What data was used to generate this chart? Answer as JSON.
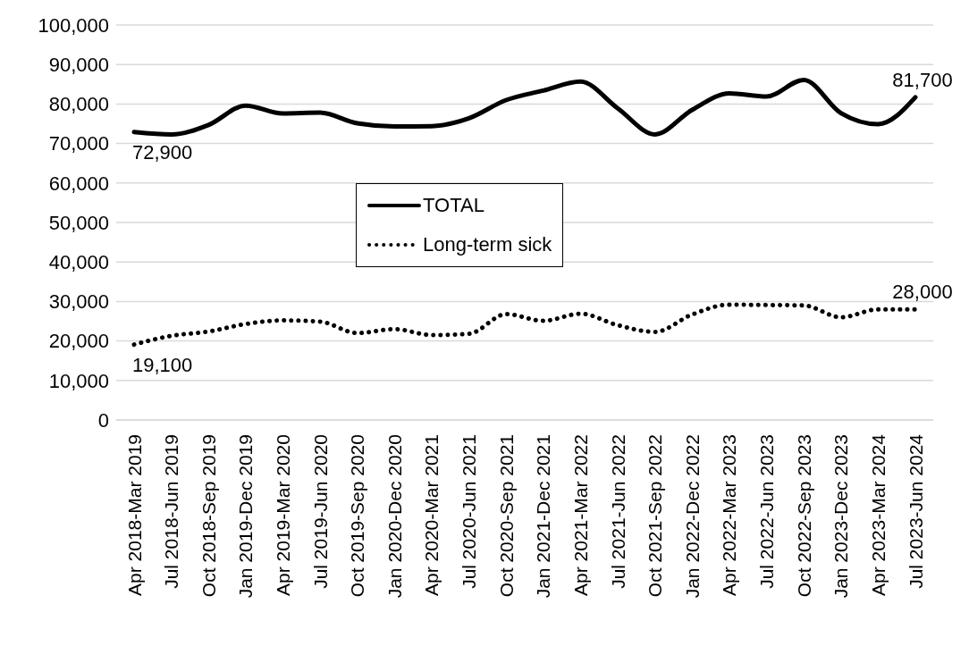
{
  "chart_data": {
    "type": "line",
    "categories": [
      "Apr 2018-Mar 2019",
      "Jul 2018-Jun 2019",
      "Oct 2018-Sep 2019",
      "Jan 2019-Dec 2019",
      "Apr 2019-Mar 2020",
      "Jul 2019-Jun 2020",
      "Oct 2019-Sep 2020",
      "Jan 2020-Dec 2020",
      "Apr 2020-Mar 2021",
      "Jul 2020-Jun 2021",
      "Oct 2020-Sep 2021",
      "Jan 2021-Dec 2021",
      "Apr 2021-Mar 2022",
      "Jul 2021-Jun 2022",
      "Oct 2021-Sep 2022",
      "Jan 2022-Dec 2022",
      "Apr 2022-Mar 2023",
      "Jul 2022-Jun 2023",
      "Oct 2022-Sep 2023",
      "Jan 2023-Dec 2023",
      "Apr 2023-Mar 2024",
      "Jul 2023-Jun 2024"
    ],
    "series": [
      {
        "name": "TOTAL",
        "color": "#000000",
        "line_style": "solid",
        "values": [
          72900,
          72300,
          74700,
          79600,
          77600,
          77800,
          75100,
          74300,
          74400,
          76400,
          81000,
          83400,
          85700,
          78900,
          72300,
          78500,
          82700,
          81900,
          86100,
          77700,
          74900,
          81700
        ],
        "value_labels": [
          "72,900",
          null,
          null,
          null,
          null,
          null,
          null,
          null,
          null,
          null,
          null,
          null,
          null,
          null,
          null,
          null,
          null,
          null,
          null,
          null,
          null,
          "81,700"
        ]
      },
      {
        "name": "Long-term sick",
        "color": "#000000",
        "line_style": "dotted",
        "values": [
          19100,
          21300,
          22400,
          24300,
          25200,
          24900,
          22000,
          23000,
          21500,
          21800,
          26800,
          25100,
          26900,
          24000,
          22300,
          26700,
          29200,
          29100,
          29000,
          26000,
          28000,
          28000
        ],
        "value_labels": [
          "19,100",
          null,
          null,
          null,
          null,
          null,
          null,
          null,
          null,
          null,
          null,
          null,
          null,
          null,
          null,
          null,
          null,
          null,
          null,
          null,
          null,
          "28,000"
        ]
      }
    ],
    "ylim": [
      0,
      100000
    ],
    "yticks": [
      0,
      {
        "value": 10000,
        "label": "10,000"
      },
      {
        "value": 20000,
        "label": "20,000"
      },
      {
        "value": 30000,
        "label": "30,000"
      },
      {
        "value": 40000,
        "label": "40,000"
      },
      {
        "value": 50000,
        "label": "50,000"
      },
      {
        "value": 60000,
        "label": "60,000"
      },
      {
        "value": 70000,
        "label": "70,000"
      },
      {
        "value": 80000,
        "label": "80,000"
      },
      {
        "value": 90000,
        "label": "90,000"
      },
      {
        "value": 100000,
        "label": "100,000"
      }
    ],
    "grid": "y",
    "legend": "center",
    "marker": "none"
  }
}
